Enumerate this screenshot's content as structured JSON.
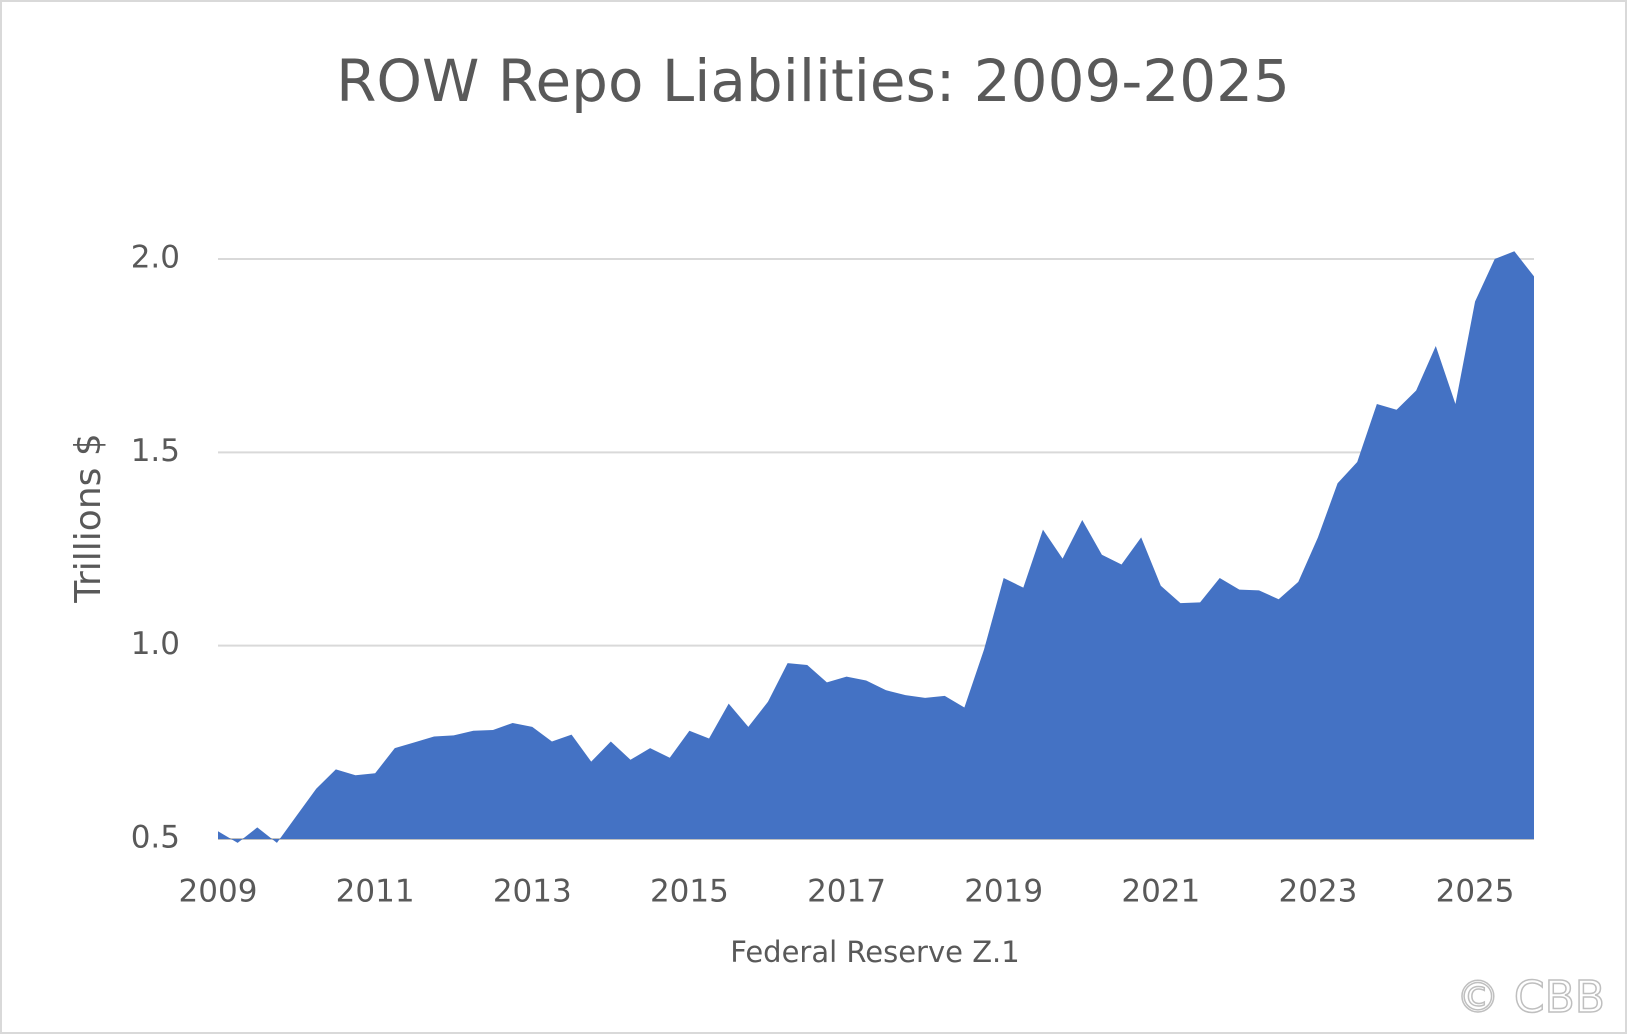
{
  "chart_data": {
    "type": "area",
    "title": "ROW Repo Liabilities: 2009-2025",
    "ylabel": "Trillions $",
    "xlabel": "Federal Reserve Z.1",
    "watermark": "© CBB",
    "x": [
      2009,
      2009.25,
      2009.5,
      2009.75,
      2010,
      2010.25,
      2010.5,
      2010.75,
      2011,
      2011.25,
      2011.5,
      2011.75,
      2012,
      2012.25,
      2012.5,
      2012.75,
      2013,
      2013.25,
      2013.5,
      2013.75,
      2014,
      2014.25,
      2014.5,
      2014.75,
      2015,
      2015.25,
      2015.5,
      2015.75,
      2016,
      2016.25,
      2016.5,
      2016.75,
      2017,
      2017.25,
      2017.5,
      2017.75,
      2018,
      2018.25,
      2018.5,
      2018.75,
      2019,
      2019.25,
      2019.5,
      2019.75,
      2020,
      2020.25,
      2020.5,
      2020.75,
      2021,
      2021.25,
      2021.5,
      2021.75,
      2022,
      2022.25,
      2022.5,
      2022.75,
      2023,
      2023.25,
      2023.5,
      2023.75,
      2024,
      2024.25,
      2024.5,
      2024.75,
      2025,
      2025.25,
      2025.5,
      2025.75
    ],
    "series": [
      {
        "name": "ROW Repo Liabilities",
        "color": "#4472c4",
        "values": [
          0.52,
          0.49,
          0.53,
          0.49,
          0.56,
          0.63,
          0.68,
          0.665,
          0.67,
          0.735,
          0.75,
          0.765,
          0.768,
          0.78,
          0.782,
          0.8,
          0.79,
          0.752,
          0.77,
          0.7,
          0.752,
          0.705,
          0.735,
          0.71,
          0.78,
          0.76,
          0.85,
          0.79,
          0.855,
          0.955,
          0.95,
          0.905,
          0.92,
          0.91,
          0.885,
          0.872,
          0.865,
          0.87,
          0.84,
          0.99,
          1.175,
          1.15,
          1.3,
          1.225,
          1.325,
          1.235,
          1.21,
          1.28,
          1.155,
          1.11,
          1.112,
          1.175,
          1.145,
          1.143,
          1.12,
          1.165,
          1.28,
          1.42,
          1.475,
          1.625,
          1.61,
          1.66,
          1.775,
          1.625,
          1.89,
          2.0,
          2.02,
          1.955
        ]
      }
    ],
    "xlim": [
      2009,
      2025.75
    ],
    "xticks": [
      2009,
      2011,
      2013,
      2015,
      2017,
      2019,
      2021,
      2023,
      2025
    ],
    "ylim": [
      0.5,
      2.0
    ],
    "yticks": [
      0.5,
      {
        "value": 1,
        "label": "1.0"
      },
      1.5,
      {
        "value": 2,
        "label": "2.0"
      }
    ],
    "grid": true
  }
}
